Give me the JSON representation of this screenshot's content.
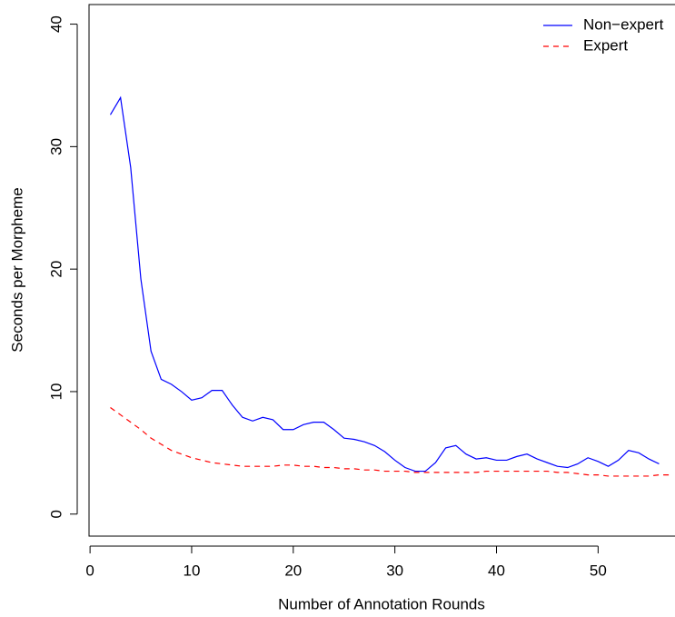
{
  "chart_data": {
    "type": "line",
    "x_label": "Number of Annotation Rounds",
    "y_label": "Seconds per Morpheme",
    "x": [
      2,
      3,
      4,
      5,
      6,
      7,
      8,
      9,
      10,
      11,
      12,
      13,
      14,
      15,
      16,
      17,
      18,
      19,
      20,
      21,
      22,
      23,
      24,
      25,
      26,
      27,
      28,
      29,
      30,
      31,
      32,
      33,
      34,
      35,
      36,
      37,
      38,
      39,
      40,
      41,
      42,
      43,
      44,
      45,
      46,
      47,
      48,
      49,
      50,
      51,
      52,
      53,
      54,
      55,
      56,
      57
    ],
    "series": [
      {
        "name": "Non−expert",
        "color": "#0000ff",
        "dash": "solid",
        "values": [
          32.6,
          34.0,
          28.3,
          19.2,
          13.3,
          11.0,
          10.6,
          10.0,
          9.3,
          9.5,
          10.1,
          10.1,
          8.9,
          7.9,
          7.6,
          7.9,
          7.7,
          6.9,
          6.9,
          7.3,
          7.5,
          7.5,
          6.9,
          6.2,
          6.1,
          5.9,
          5.6,
          5.1,
          4.4,
          3.8,
          3.5,
          3.5,
          4.2,
          5.4,
          5.6,
          4.9,
          4.5,
          4.6,
          4.4,
          4.4,
          4.7,
          4.9,
          4.5,
          4.2,
          3.9,
          3.8,
          4.1,
          4.6,
          4.3,
          3.9,
          4.4,
          5.2,
          5.0,
          4.5,
          4.1,
          null
        ]
      },
      {
        "name": "Expert",
        "color": "#ff0000",
        "dash": "dashed",
        "values": [
          8.7,
          8.1,
          7.5,
          6.9,
          6.2,
          5.7,
          5.2,
          4.9,
          4.6,
          4.4,
          4.2,
          4.1,
          4.0,
          3.9,
          3.9,
          3.9,
          3.9,
          4.0,
          4.0,
          3.9,
          3.9,
          3.8,
          3.8,
          3.7,
          3.7,
          3.6,
          3.6,
          3.5,
          3.5,
          3.5,
          3.4,
          3.4,
          3.4,
          3.4,
          3.4,
          3.4,
          3.4,
          3.5,
          3.5,
          3.5,
          3.5,
          3.5,
          3.5,
          3.5,
          3.4,
          3.4,
          3.3,
          3.2,
          3.2,
          3.1,
          3.1,
          3.1,
          3.1,
          3.1,
          3.2,
          3.2
        ]
      }
    ],
    "xlim": [
      -0.1,
      57.3
    ],
    "ylim": [
      -1.8,
      41.6
    ],
    "xticks": [
      0,
      10,
      20,
      30,
      40,
      50
    ],
    "yticks": [
      0,
      10,
      20,
      30,
      40
    ],
    "legend": "top-right"
  }
}
